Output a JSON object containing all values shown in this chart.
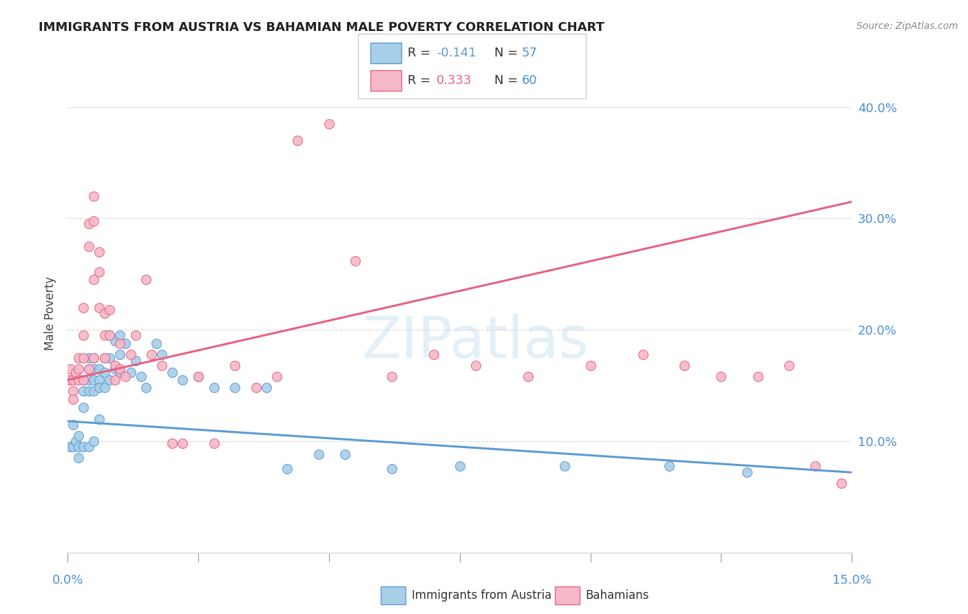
{
  "title": "IMMIGRANTS FROM AUSTRIA VS BAHAMIAN MALE POVERTY CORRELATION CHART",
  "source": "Source: ZipAtlas.com",
  "ylabel": "Male Poverty",
  "yticks": [
    0.0,
    0.1,
    0.2,
    0.3,
    0.4
  ],
  "ytick_labels": [
    "",
    "10.0%",
    "20.0%",
    "30.0%",
    "40.0%"
  ],
  "xmin": 0.0,
  "xmax": 0.15,
  "ymin": 0.0,
  "ymax": 0.43,
  "color_austria": "#a8cfe8",
  "color_bahamian": "#f5b8c8",
  "color_austria_line": "#5b9bd5",
  "color_bahamian_line": "#e86080",
  "color_axis_labels": "#4a90d9",
  "color_grid": "#d8d8d8",
  "austria_scatter_x": [
    0.0005,
    0.001,
    0.001,
    0.0015,
    0.002,
    0.002,
    0.002,
    0.003,
    0.003,
    0.003,
    0.003,
    0.004,
    0.004,
    0.004,
    0.004,
    0.004,
    0.005,
    0.005,
    0.005,
    0.005,
    0.005,
    0.006,
    0.006,
    0.006,
    0.006,
    0.007,
    0.007,
    0.007,
    0.008,
    0.008,
    0.008,
    0.009,
    0.009,
    0.01,
    0.01,
    0.01,
    0.011,
    0.012,
    0.013,
    0.014,
    0.015,
    0.017,
    0.018,
    0.02,
    0.022,
    0.025,
    0.028,
    0.032,
    0.038,
    0.042,
    0.048,
    0.053,
    0.062,
    0.075,
    0.095,
    0.115,
    0.13
  ],
  "austria_scatter_y": [
    0.095,
    0.115,
    0.095,
    0.1,
    0.105,
    0.095,
    0.085,
    0.155,
    0.145,
    0.13,
    0.095,
    0.175,
    0.165,
    0.155,
    0.145,
    0.095,
    0.175,
    0.165,
    0.155,
    0.145,
    0.1,
    0.165,
    0.155,
    0.148,
    0.12,
    0.175,
    0.162,
    0.148,
    0.195,
    0.175,
    0.155,
    0.19,
    0.165,
    0.195,
    0.178,
    0.162,
    0.188,
    0.162,
    0.172,
    0.158,
    0.148,
    0.188,
    0.178,
    0.162,
    0.155,
    0.158,
    0.148,
    0.148,
    0.148,
    0.075,
    0.088,
    0.088,
    0.075,
    0.078,
    0.078,
    0.078,
    0.072
  ],
  "bahamian_scatter_x": [
    0.0003,
    0.0005,
    0.001,
    0.001,
    0.001,
    0.0015,
    0.002,
    0.002,
    0.002,
    0.003,
    0.003,
    0.003,
    0.003,
    0.004,
    0.004,
    0.004,
    0.005,
    0.005,
    0.005,
    0.005,
    0.006,
    0.006,
    0.006,
    0.007,
    0.007,
    0.007,
    0.008,
    0.008,
    0.009,
    0.009,
    0.01,
    0.01,
    0.011,
    0.012,
    0.013,
    0.015,
    0.016,
    0.018,
    0.02,
    0.022,
    0.025,
    0.028,
    0.032,
    0.036,
    0.04,
    0.044,
    0.05,
    0.055,
    0.062,
    0.07,
    0.078,
    0.088,
    0.1,
    0.11,
    0.118,
    0.125,
    0.132,
    0.138,
    0.143,
    0.148
  ],
  "bahamian_scatter_y": [
    0.155,
    0.165,
    0.155,
    0.145,
    0.138,
    0.162,
    0.175,
    0.165,
    0.155,
    0.22,
    0.195,
    0.175,
    0.155,
    0.295,
    0.275,
    0.165,
    0.32,
    0.298,
    0.245,
    0.175,
    0.27,
    0.252,
    0.22,
    0.215,
    0.195,
    0.175,
    0.218,
    0.195,
    0.168,
    0.155,
    0.188,
    0.165,
    0.158,
    0.178,
    0.195,
    0.245,
    0.178,
    0.168,
    0.098,
    0.098,
    0.158,
    0.098,
    0.168,
    0.148,
    0.158,
    0.37,
    0.385,
    0.262,
    0.158,
    0.178,
    0.168,
    0.158,
    0.168,
    0.178,
    0.168,
    0.158,
    0.158,
    0.168,
    0.078,
    0.062
  ],
  "austria_line_x0": 0.0,
  "austria_line_x1": 0.15,
  "austria_line_y0": 0.118,
  "austria_line_y1": 0.072,
  "bahamian_line_x0": 0.0,
  "bahamian_line_x1": 0.15,
  "bahamian_line_y0": 0.155,
  "bahamian_line_y1": 0.315
}
